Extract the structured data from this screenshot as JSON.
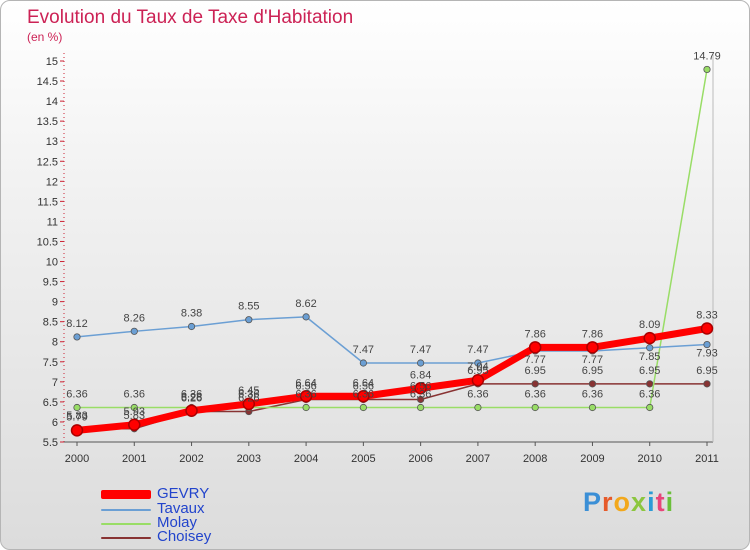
{
  "chart_data": {
    "type": "line",
    "title": "Evolution du Taux de Taxe d'Habitation",
    "subtitle": "(en %)",
    "x": [
      "2000",
      "2001",
      "2002",
      "2003",
      "2004",
      "2005",
      "2006",
      "2007",
      "2008",
      "2009",
      "2010",
      "2011"
    ],
    "ylim": [
      5.5,
      15
    ],
    "yticks": [
      "5.5",
      "6",
      "6.5",
      "7",
      "7.5",
      "8",
      "8.5",
      "9",
      "9.5",
      "10",
      "10.5",
      "11",
      "11.5",
      "12",
      "12.5",
      "13",
      "13.5",
      "14",
      "14.5",
      "15"
    ],
    "grid": false,
    "legend_position": "bottom-left",
    "series": [
      {
        "name": "GEVRY",
        "color": "#ff0000",
        "values": [
          5.79,
          5.93,
          6.28,
          6.45,
          6.64,
          6.64,
          6.84,
          7.04,
          7.86,
          7.86,
          8.09,
          8.33
        ],
        "labels": [
          "5.79",
          "5.93",
          "6.28",
          "6.45",
          "6.64",
          "6.64",
          "6.84",
          "7.04",
          "7.86",
          "7.86",
          "8.09",
          "8.33"
        ]
      },
      {
        "name": "Tavaux",
        "color": "#6b9fd4",
        "values": [
          8.12,
          8.26,
          8.38,
          8.55,
          8.62,
          7.47,
          7.47,
          7.47,
          7.77,
          7.77,
          7.85,
          7.93
        ],
        "labels": [
          "8.12",
          "8.26",
          "8.38",
          "8.55",
          "8.62",
          "7.47",
          "7.47",
          "7.47",
          "7.77",
          "7.77",
          "7.85",
          "7.93"
        ]
      },
      {
        "name": "Molay",
        "color": "#99dd66",
        "values": [
          6.36,
          6.36,
          6.36,
          6.36,
          6.36,
          6.36,
          6.36,
          6.36,
          6.36,
          6.36,
          6.36,
          14.79
        ],
        "labels": [
          "6.36",
          "6.36",
          "6.36",
          "6.36",
          "6.36",
          "6.36",
          "6.36",
          "6.36",
          "6.36",
          "6.36",
          "6.36",
          "14.79"
        ]
      },
      {
        "name": "Choisey",
        "color": "#883333",
        "values": [
          5.83,
          5.83,
          6.26,
          6.26,
          6.56,
          6.56,
          6.56,
          6.95,
          6.95,
          6.95,
          6.95,
          6.95
        ],
        "labels": [
          "5.83",
          "5.83",
          "6.26",
          "6.26",
          "6.56",
          "6.56",
          "6.56",
          "6.95",
          "6.95",
          "6.95",
          "6.95",
          "6.95"
        ]
      }
    ]
  },
  "branding": {
    "logo_text": [
      "P",
      "r",
      "o",
      "x",
      "i",
      "t",
      "i"
    ]
  }
}
